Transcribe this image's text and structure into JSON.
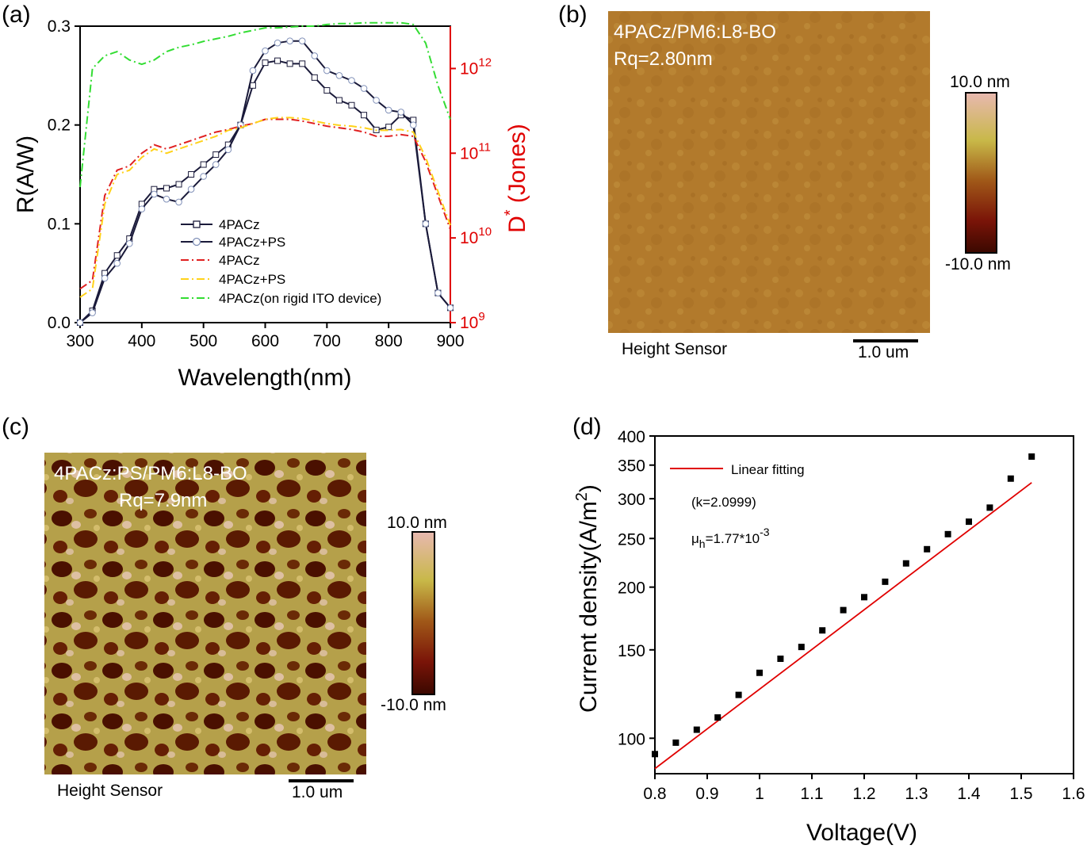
{
  "colors": {
    "resp_4pacz": "#1a1a3a",
    "resp_4pacz_ps": "#8090b8",
    "det_4pacz": "#e02020",
    "det_4pacz_ps": "#ffd21a",
    "det_ito": "#33dd33",
    "right_axis": "#e00000",
    "fit": "#e00000",
    "afm_b_base": "#b07a2a",
    "afm_c_dark": "#4a0d00",
    "afm_c_light": "#c8b456"
  },
  "panel_a": {
    "label": "(a)",
    "xlabel": "Wavelength(nm)",
    "ylabel": "R(A/W)",
    "y2label": "D * (Jones)",
    "y2label_main": "D",
    "y2label_sup": "*",
    "y2label_rest": " (Jones)",
    "x_ticks": [
      "300",
      "400",
      "500",
      "600",
      "700",
      "800",
      "900"
    ],
    "y_ticks": [
      "0.0",
      "0.1",
      "0.2",
      "0.3"
    ],
    "y2_ticks": [
      {
        "base": "10",
        "exp": "9"
      },
      {
        "base": "10",
        "exp": "10"
      },
      {
        "base": "10",
        "exp": "11"
      },
      {
        "base": "10",
        "exp": "12"
      }
    ],
    "legend": [
      "4PACz",
      "4PACz+PS",
      "4PACz",
      "4PACz+PS",
      "4PACz(on rigid ITO device)"
    ]
  },
  "panel_b": {
    "label": "(b)",
    "title": "4PACz/PM6:L8-BO",
    "rq": "Rq=2.80nm",
    "cb_max": "10.0 nm",
    "cb_min": "-10.0 nm",
    "sensor": "Height Sensor",
    "scale": "1.0 um"
  },
  "panel_c": {
    "label": "(c)",
    "title": "4PACz:PS/PM6:L8-BO",
    "rq": "Rq=7.9nm",
    "cb_max": "10.0 nm",
    "cb_min": "-10.0 nm",
    "sensor": "Height Sensor",
    "scale": "1.0 um"
  },
  "panel_d": {
    "label": "(d)",
    "xlabel": "Voltage(V)",
    "ylabel": "Current density(A/m2)",
    "ylabel_main": "Current density(A/m",
    "ylabel_sup": "2",
    "ylabel_end": ")",
    "legend_fit": "Linear fitting",
    "k_text": "(k=2.0999)",
    "mu_main": "μ",
    "mu_sub": "h",
    "mu_eq": "=1.77*10",
    "mu_exp": "-3",
    "x_ticks": [
      "0.8",
      "0.9",
      "1",
      "1.1",
      "1.2",
      "1.3",
      "1.4",
      "1.5",
      "1.6"
    ],
    "y_ticks": [
      "100",
      "150",
      "200",
      "250",
      "300",
      "350",
      "400"
    ]
  },
  "chart_data": [
    {
      "type": "line",
      "panel": "a",
      "xlabel": "Wavelength(nm)",
      "ylabel": "R(A/W)",
      "y2label": "D* (Jones)",
      "xlim": [
        300,
        900
      ],
      "ylim": [
        0,
        0.3
      ],
      "y2lim_log10": [
        9,
        12.5
      ],
      "x": [
        300,
        320,
        340,
        360,
        380,
        400,
        420,
        440,
        460,
        480,
        500,
        520,
        540,
        560,
        580,
        600,
        620,
        640,
        660,
        680,
        700,
        720,
        740,
        760,
        780,
        800,
        820,
        840,
        860,
        880,
        900
      ],
      "series": [
        {
          "name": "4PACz",
          "axis": "left",
          "values": [
            0.0,
            0.012,
            0.05,
            0.068,
            0.085,
            0.12,
            0.135,
            0.136,
            0.14,
            0.15,
            0.16,
            0.17,
            0.18,
            0.2,
            0.24,
            0.263,
            0.265,
            0.262,
            0.262,
            0.248,
            0.235,
            0.225,
            0.22,
            0.21,
            0.195,
            0.198,
            0.21,
            0.205,
            0.1,
            0.03,
            0.015
          ]
        },
        {
          "name": "4PACz+PS",
          "axis": "left",
          "values": [
            0.0,
            0.01,
            0.045,
            0.06,
            0.08,
            0.115,
            0.13,
            0.125,
            0.122,
            0.135,
            0.148,
            0.16,
            0.175,
            0.2,
            0.255,
            0.275,
            0.283,
            0.285,
            0.285,
            0.27,
            0.255,
            0.25,
            0.245,
            0.237,
            0.225,
            0.215,
            0.213,
            0.2,
            0.1,
            0.03,
            0.015
          ]
        },
        {
          "name": "4PACz",
          "axis": "right_log10",
          "values": [
            9.4,
            9.5,
            10.5,
            10.8,
            10.85,
            11.0,
            11.1,
            11.05,
            11.1,
            11.15,
            11.2,
            11.25,
            11.28,
            11.32,
            11.35,
            11.4,
            11.4,
            11.4,
            11.38,
            11.35,
            11.32,
            11.3,
            11.28,
            11.25,
            11.2,
            11.2,
            11.22,
            11.2,
            10.9,
            10.5,
            10.1
          ]
        },
        {
          "name": "4PACz+PS",
          "axis": "right_log10",
          "values": [
            9.3,
            9.4,
            10.4,
            10.75,
            10.8,
            10.95,
            11.05,
            11.0,
            11.05,
            11.1,
            11.15,
            11.2,
            11.27,
            11.3,
            11.35,
            11.4,
            11.42,
            11.42,
            11.41,
            11.38,
            11.35,
            11.33,
            11.32,
            11.3,
            11.27,
            11.27,
            11.28,
            11.25,
            10.95,
            10.55,
            10.15
          ]
        },
        {
          "name": "4PACz(on rigid ITO device)",
          "axis": "right_log10",
          "values": [
            10.6,
            12.0,
            12.15,
            12.2,
            12.1,
            12.05,
            12.1,
            12.2,
            12.25,
            12.28,
            12.32,
            12.35,
            12.38,
            12.42,
            12.45,
            12.48,
            12.48,
            12.49,
            12.5,
            12.5,
            12.52,
            12.53,
            12.53,
            12.54,
            12.54,
            12.54,
            12.54,
            12.52,
            12.3,
            11.8,
            11.4
          ]
        }
      ]
    },
    {
      "type": "scatter",
      "panel": "d",
      "xlabel": "Voltage(V)",
      "ylabel": "Current density(A/m2)",
      "xlim": [
        0.8,
        1.6
      ],
      "ylim": [
        85,
        400
      ],
      "y_scale": "log",
      "points_x": [
        0.8,
        0.84,
        0.88,
        0.92,
        0.96,
        1.0,
        1.04,
        1.08,
        1.12,
        1.16,
        1.2,
        1.24,
        1.28,
        1.32,
        1.36,
        1.4,
        1.44,
        1.48,
        1.52
      ],
      "points_y": [
        93,
        98,
        104,
        110,
        122,
        135,
        144,
        152,
        164,
        180,
        191,
        205,
        223,
        238,
        255,
        270,
        288,
        329,
        364
      ],
      "fit": {
        "name": "Linear fitting",
        "x": [
          0.8,
          1.52
        ],
        "y": [
          87,
          323
        ]
      }
    }
  ]
}
